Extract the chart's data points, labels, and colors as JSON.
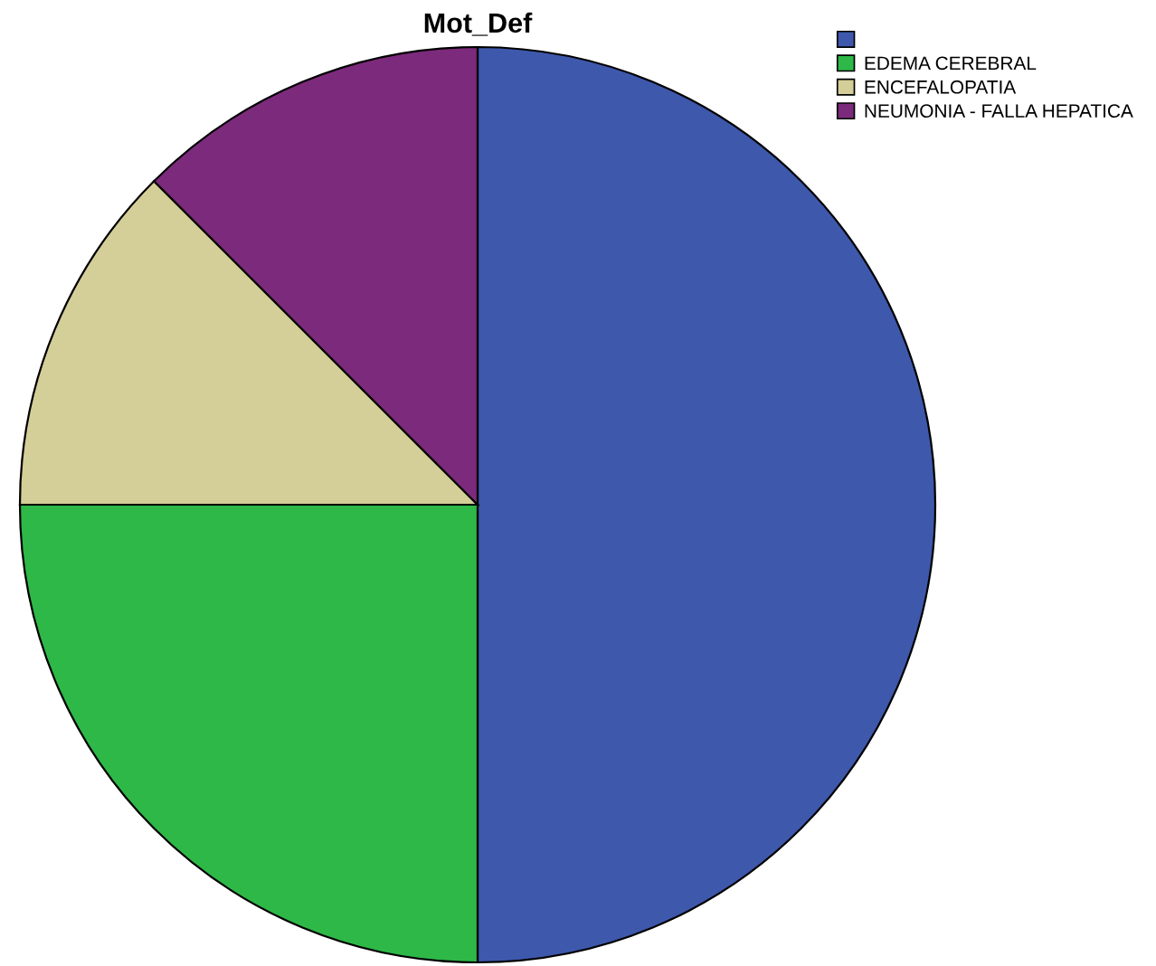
{
  "chart_data": {
    "type": "pie",
    "title": "Mot_Def",
    "categories": [
      null,
      "EDEMA CEREBRAL",
      "ENCEFALOPATIA",
      "NEUMONIA - FALLA HEPATICA"
    ],
    "values": [
      50,
      25,
      12.5,
      12.5
    ],
    "colors": [
      "#3e58ac",
      "#2eb848",
      "#d4ce98",
      "#7c2a7c"
    ],
    "legend": "top right"
  }
}
